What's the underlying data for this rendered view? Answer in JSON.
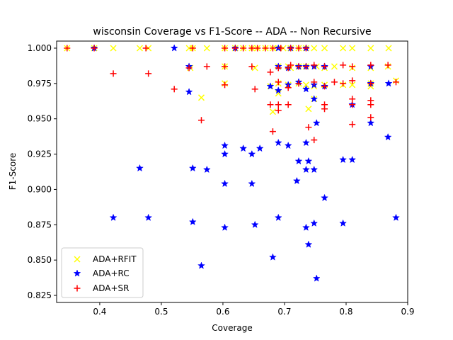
{
  "chart_data": {
    "type": "scatter",
    "title": "wisconsin Coverage vs F1-Score -- ADA -- Non Recursive",
    "xlabel": "Coverage",
    "ylabel": "F1-Score",
    "xlim": [
      0.33,
      0.9
    ],
    "ylim": [
      0.82,
      1.005
    ],
    "xticks": [
      "0.4",
      "0.5",
      "0.6",
      "0.7",
      "0.8",
      "0.9"
    ],
    "yticks": [
      "0.825",
      "0.850",
      "0.875",
      "0.900",
      "0.925",
      "0.950",
      "0.975",
      "1.000"
    ],
    "grid": false,
    "legend_position": "lower left",
    "series": [
      {
        "name": "ADA+RFIT",
        "marker": "x",
        "color": "#ffff00",
        "points": [
          [
            0.347,
            1.0
          ],
          [
            0.391,
            1.0
          ],
          [
            0.422,
            1.0
          ],
          [
            0.465,
            1.0
          ],
          [
            0.479,
            1.0
          ],
          [
            0.545,
            1.0
          ],
          [
            0.551,
            1.0
          ],
          [
            0.574,
            1.0
          ],
          [
            0.603,
            1.0
          ],
          [
            0.62,
            1.0
          ],
          [
            0.633,
            1.0
          ],
          [
            0.647,
            1.0
          ],
          [
            0.656,
            1.0
          ],
          [
            0.669,
            1.0
          ],
          [
            0.681,
            1.0
          ],
          [
            0.69,
            1.0
          ],
          [
            0.698,
            1.0
          ],
          [
            0.71,
            1.0
          ],
          [
            0.723,
            1.0
          ],
          [
            0.735,
            1.0
          ],
          [
            0.748,
            1.0
          ],
          [
            0.765,
            1.0
          ],
          [
            0.795,
            1.0
          ],
          [
            0.81,
            1.0
          ],
          [
            0.84,
            1.0
          ],
          [
            0.869,
            1.0
          ],
          [
            0.547,
            0.986
          ],
          [
            0.603,
            0.987
          ],
          [
            0.652,
            0.986
          ],
          [
            0.69,
            0.987
          ],
          [
            0.706,
            0.987
          ],
          [
            0.71,
            0.986
          ],
          [
            0.723,
            0.987
          ],
          [
            0.735,
            0.987
          ],
          [
            0.752,
            0.987
          ],
          [
            0.765,
            0.986
          ],
          [
            0.781,
            0.987
          ],
          [
            0.81,
            0.986
          ],
          [
            0.84,
            0.986
          ],
          [
            0.868,
            0.987
          ],
          [
            0.603,
            0.975
          ],
          [
            0.677,
            0.973
          ],
          [
            0.69,
            0.975
          ],
          [
            0.706,
            0.974
          ],
          [
            0.723,
            0.975
          ],
          [
            0.735,
            0.974
          ],
          [
            0.748,
            0.973
          ],
          [
            0.765,
            0.974
          ],
          [
            0.795,
            0.974
          ],
          [
            0.81,
            0.974
          ],
          [
            0.84,
            0.973
          ],
          [
            0.84,
            0.975
          ],
          [
            0.881,
            0.977
          ],
          [
            0.565,
            0.965
          ],
          [
            0.69,
            0.968
          ],
          [
            0.748,
            0.964
          ],
          [
            0.739,
            0.957
          ],
          [
            0.681,
            0.955
          ]
        ]
      },
      {
        "name": "ADA+RC",
        "marker": "*",
        "color": "#0000ff",
        "points": [
          [
            0.391,
            1.0
          ],
          [
            0.521,
            1.0
          ],
          [
            0.62,
            1.0
          ],
          [
            0.69,
            1.0
          ],
          [
            0.71,
            1.0
          ],
          [
            0.735,
            1.0
          ],
          [
            0.545,
            0.987
          ],
          [
            0.69,
            0.987
          ],
          [
            0.706,
            0.986
          ],
          [
            0.723,
            0.987
          ],
          [
            0.735,
            0.987
          ],
          [
            0.748,
            0.987
          ],
          [
            0.765,
            0.987
          ],
          [
            0.84,
            0.987
          ],
          [
            0.677,
            0.973
          ],
          [
            0.706,
            0.974
          ],
          [
            0.723,
            0.976
          ],
          [
            0.748,
            0.974
          ],
          [
            0.765,
            0.973
          ],
          [
            0.84,
            0.975
          ],
          [
            0.869,
            0.975
          ],
          [
            0.545,
            0.969
          ],
          [
            0.69,
            0.97
          ],
          [
            0.735,
            0.971
          ],
          [
            0.748,
            0.964
          ],
          [
            0.81,
            0.96
          ],
          [
            0.752,
            0.947
          ],
          [
            0.84,
            0.947
          ],
          [
            0.603,
            0.931
          ],
          [
            0.633,
            0.929
          ],
          [
            0.66,
            0.929
          ],
          [
            0.69,
            0.933
          ],
          [
            0.706,
            0.931
          ],
          [
            0.735,
            0.933
          ],
          [
            0.868,
            0.937
          ],
          [
            0.603,
            0.925
          ],
          [
            0.647,
            0.925
          ],
          [
            0.723,
            0.92
          ],
          [
            0.739,
            0.92
          ],
          [
            0.795,
            0.921
          ],
          [
            0.81,
            0.921
          ],
          [
            0.465,
            0.915
          ],
          [
            0.551,
            0.915
          ],
          [
            0.574,
            0.914
          ],
          [
            0.735,
            0.914
          ],
          [
            0.748,
            0.914
          ],
          [
            0.603,
            0.904
          ],
          [
            0.647,
            0.904
          ],
          [
            0.72,
            0.906
          ],
          [
            0.765,
            0.894
          ],
          [
            0.422,
            0.88
          ],
          [
            0.479,
            0.88
          ],
          [
            0.551,
            0.877
          ],
          [
            0.603,
            0.873
          ],
          [
            0.652,
            0.875
          ],
          [
            0.69,
            0.88
          ],
          [
            0.735,
            0.873
          ],
          [
            0.748,
            0.876
          ],
          [
            0.795,
            0.876
          ],
          [
            0.881,
            0.88
          ],
          [
            0.739,
            0.861
          ],
          [
            0.681,
            0.852
          ],
          [
            0.565,
            0.846
          ],
          [
            0.752,
            0.837
          ]
        ]
      },
      {
        "name": "ADA+SR",
        "marker": "+",
        "color": "#ff0000",
        "points": [
          [
            0.347,
            1.0
          ],
          [
            0.391,
            1.0
          ],
          [
            0.475,
            1.0
          ],
          [
            0.551,
            1.0
          ],
          [
            0.603,
            1.0
          ],
          [
            0.62,
            1.0
          ],
          [
            0.633,
            1.0
          ],
          [
            0.647,
            1.0
          ],
          [
            0.656,
            1.0
          ],
          [
            0.669,
            1.0
          ],
          [
            0.681,
            1.0
          ],
          [
            0.694,
            1.0
          ],
          [
            0.71,
            1.0
          ],
          [
            0.723,
            1.0
          ],
          [
            0.735,
            1.0
          ],
          [
            0.422,
            0.982
          ],
          [
            0.479,
            0.982
          ],
          [
            0.545,
            0.986
          ],
          [
            0.574,
            0.987
          ],
          [
            0.603,
            0.987
          ],
          [
            0.647,
            0.987
          ],
          [
            0.677,
            0.983
          ],
          [
            0.69,
            0.986
          ],
          [
            0.706,
            0.986
          ],
          [
            0.71,
            0.988
          ],
          [
            0.723,
            0.987
          ],
          [
            0.735,
            0.987
          ],
          [
            0.748,
            0.988
          ],
          [
            0.765,
            0.987
          ],
          [
            0.795,
            0.988
          ],
          [
            0.81,
            0.987
          ],
          [
            0.84,
            0.988
          ],
          [
            0.868,
            0.988
          ],
          [
            0.521,
            0.971
          ],
          [
            0.603,
            0.974
          ],
          [
            0.652,
            0.971
          ],
          [
            0.69,
            0.976
          ],
          [
            0.706,
            0.972
          ],
          [
            0.723,
            0.975
          ],
          [
            0.748,
            0.976
          ],
          [
            0.765,
            0.973
          ],
          [
            0.781,
            0.976
          ],
          [
            0.795,
            0.975
          ],
          [
            0.81,
            0.977
          ],
          [
            0.84,
            0.975
          ],
          [
            0.881,
            0.976
          ],
          [
            0.565,
            0.949
          ],
          [
            0.677,
            0.96
          ],
          [
            0.69,
            0.96
          ],
          [
            0.69,
            0.956
          ],
          [
            0.706,
            0.96
          ],
          [
            0.765,
            0.96
          ],
          [
            0.765,
            0.957
          ],
          [
            0.81,
            0.96
          ],
          [
            0.81,
            0.964
          ],
          [
            0.84,
            0.96
          ],
          [
            0.84,
            0.963
          ],
          [
            0.681,
            0.941
          ],
          [
            0.739,
            0.944
          ],
          [
            0.748,
            0.935
          ],
          [
            0.81,
            0.946
          ],
          [
            0.84,
            0.951
          ]
        ]
      }
    ]
  }
}
